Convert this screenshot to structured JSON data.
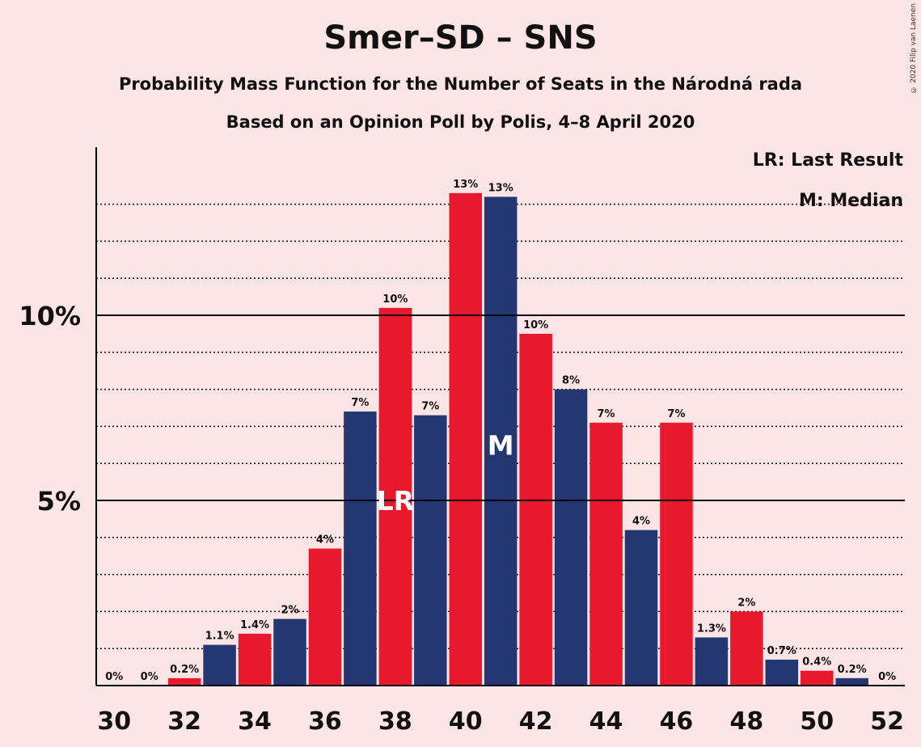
{
  "chart_data": {
    "type": "bar",
    "title": "Smer–SD – SNS",
    "subtitle": "Probability Mass Function for the Number of Seats in the Národná rada",
    "subtitle2": "Based on an Opinion Poll by Polis, 4–8 April 2020",
    "copyright": "© 2020 Filip van Laenen",
    "legend": {
      "lr": "LR: Last Result",
      "m": "M: Median",
      "placement": "top-right"
    },
    "x": [
      30,
      31,
      32,
      33,
      34,
      35,
      36,
      37,
      38,
      39,
      40,
      41,
      42,
      43,
      44,
      45,
      46,
      47,
      48,
      49,
      50,
      51,
      52
    ],
    "values": [
      0,
      0,
      0.2,
      1.1,
      1.4,
      1.8,
      3.7,
      7.4,
      10.2,
      7.3,
      13.3,
      13.2,
      9.5,
      8.0,
      7.1,
      4.2,
      7.1,
      1.3,
      2.0,
      0.7,
      0.4,
      0.2,
      0
    ],
    "labels": [
      "0%",
      "0%",
      "0.2%",
      "1.1%",
      "1.4%",
      "2%",
      "4%",
      "7%",
      "10%",
      "7%",
      "13%",
      "13%",
      "10%",
      "8%",
      "7%",
      "4%",
      "7%",
      "1.3%",
      "2%",
      "0.7%",
      "0.4%",
      "0.2%",
      "0%"
    ],
    "x_tick_labels": [
      "30",
      "32",
      "34",
      "36",
      "38",
      "40",
      "42",
      "44",
      "46",
      "48",
      "50",
      "52"
    ],
    "y_tick_labels": [
      "5%",
      "10%"
    ],
    "y_ticks": [
      5,
      10
    ],
    "ylim": [
      0,
      14.5
    ],
    "last_result_seat": 38,
    "last_result_marker": "LR",
    "median_seat": 41,
    "median_marker": "M",
    "colors": {
      "red": "#E8192C",
      "blue": "#253773",
      "background": "#FDE4E5"
    },
    "grid": true
  }
}
